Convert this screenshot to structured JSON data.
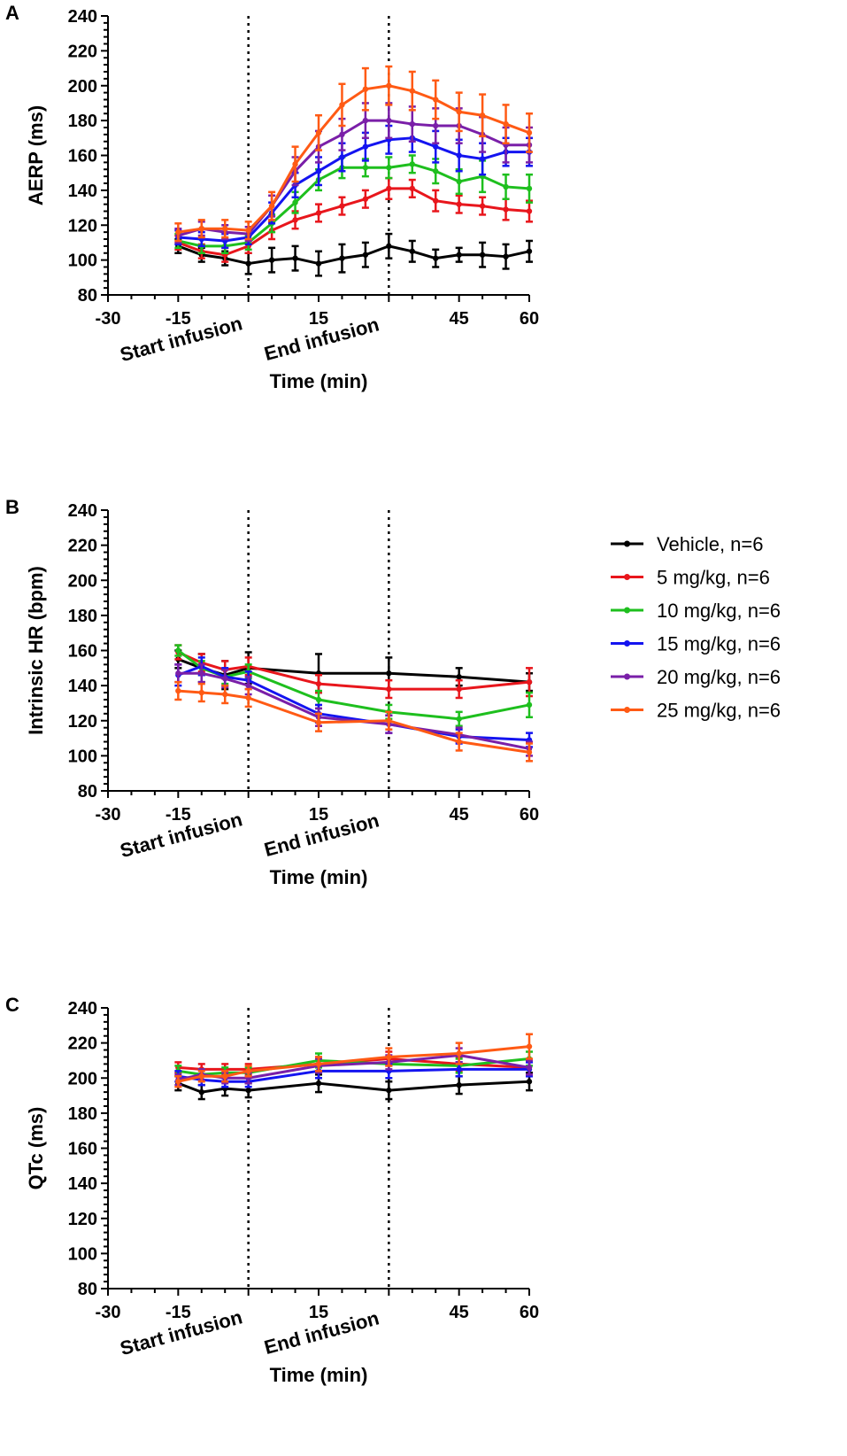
{
  "figure": {
    "legend": [
      {
        "label": "Vehicle, n=6",
        "color": "#000000"
      },
      {
        "label": "5 mg/kg, n=6",
        "color": "#e8161c"
      },
      {
        "label": "10 mg/kg, n=6",
        "color": "#1ebf1e"
      },
      {
        "label": "15 mg/kg, n=6",
        "color": "#1414f0"
      },
      {
        "label": "20 mg/kg, n=6",
        "color": "#7a1fa8"
      },
      {
        "label": "25 mg/kg, n=6",
        "color": "#ff5a14"
      }
    ]
  },
  "chart_data": [
    {
      "panel": "A",
      "type": "line",
      "xlabel": "Time (min)",
      "ylabel": "AERP (ms)",
      "xlim": [
        -30,
        60
      ],
      "ylim": [
        80,
        240
      ],
      "xticks": [
        -30,
        -15,
        15,
        45,
        60
      ],
      "yticks": [
        80,
        100,
        120,
        140,
        160,
        180,
        200,
        220,
        240
      ],
      "ref_lines": [
        {
          "x": 0,
          "label": "Start infusion"
        },
        {
          "x": 30,
          "label": "End infusion"
        }
      ],
      "x": [
        -15,
        -10,
        -5,
        0,
        5,
        10,
        15,
        20,
        25,
        30,
        35,
        40,
        45,
        50,
        55,
        60
      ],
      "series": [
        {
          "name": "Vehicle, n=6",
          "values": [
            108,
            103,
            101,
            98,
            100,
            101,
            98,
            101,
            103,
            108,
            105,
            101,
            103,
            103,
            102,
            105
          ],
          "err": [
            4,
            4,
            4,
            6,
            7,
            7,
            7,
            8,
            7,
            7,
            6,
            5,
            4,
            7,
            7,
            6
          ]
        },
        {
          "name": "5 mg/kg, n=6",
          "values": [
            110,
            105,
            103,
            108,
            117,
            123,
            127,
            131,
            135,
            141,
            141,
            134,
            132,
            131,
            129,
            128
          ],
          "err": [
            4,
            4,
            4,
            4,
            5,
            5,
            5,
            5,
            5,
            6,
            5,
            6,
            5,
            5,
            6,
            6
          ]
        },
        {
          "name": "10 mg/kg, n=6",
          "values": [
            111,
            108,
            108,
            110,
            121,
            133,
            146,
            153,
            153,
            153,
            155,
            151,
            145,
            148,
            142,
            141
          ],
          "err": [
            4,
            4,
            4,
            4,
            5,
            6,
            6,
            6,
            5,
            6,
            5,
            7,
            7,
            9,
            7,
            8
          ]
        },
        {
          "name": "15 mg/kg, n=6",
          "values": [
            113,
            112,
            111,
            113,
            127,
            143,
            151,
            159,
            165,
            169,
            170,
            165,
            160,
            158,
            162,
            162
          ],
          "err": [
            4,
            4,
            4,
            4,
            6,
            7,
            8,
            8,
            8,
            8,
            8,
            9,
            9,
            9,
            8,
            8
          ]
        },
        {
          "name": "20 mg/kg, n=6",
          "values": [
            114,
            118,
            116,
            115,
            131,
            151,
            165,
            172,
            180,
            180,
            178,
            177,
            177,
            172,
            166,
            166
          ],
          "err": [
            4,
            4,
            4,
            4,
            6,
            8,
            9,
            9,
            10,
            10,
            10,
            10,
            10,
            10,
            10,
            10
          ]
        },
        {
          "name": "25 mg/kg, n=6",
          "values": [
            116,
            118,
            118,
            117,
            131,
            155,
            173,
            189,
            198,
            200,
            197,
            192,
            185,
            183,
            178,
            173
          ],
          "err": [
            5,
            5,
            5,
            5,
            8,
            10,
            10,
            12,
            12,
            11,
            11,
            11,
            11,
            12,
            11,
            11
          ]
        }
      ]
    },
    {
      "panel": "B",
      "type": "line",
      "xlabel": "Time (min)",
      "ylabel": "Intrinsic HR (bpm)",
      "xlim": [
        -30,
        60
      ],
      "ylim": [
        80,
        240
      ],
      "xticks": [
        -30,
        -15,
        15,
        45,
        60
      ],
      "yticks": [
        80,
        100,
        120,
        140,
        160,
        180,
        200,
        220,
        240
      ],
      "ref_lines": [
        {
          "x": 0,
          "label": "Start infusion"
        },
        {
          "x": 30,
          "label": "End infusion"
        }
      ],
      "x": [
        -15,
        -10,
        -5,
        0,
        15,
        30,
        45,
        60
      ],
      "series": [
        {
          "name": "Vehicle, n=6",
          "values": [
            155,
            150,
            146,
            150,
            147,
            147,
            145,
            142
          ],
          "err": [
            5,
            8,
            8,
            9,
            11,
            9,
            5,
            5
          ]
        },
        {
          "name": "5 mg/kg, n=6",
          "values": [
            159,
            153,
            149,
            151,
            141,
            138,
            138,
            142
          ],
          "err": [
            4,
            5,
            5,
            5,
            5,
            5,
            5,
            8
          ]
        },
        {
          "name": "10 mg/kg, n=6",
          "values": [
            160,
            150,
            145,
            148,
            132,
            125,
            121,
            129
          ],
          "err": [
            3,
            4,
            4,
            4,
            5,
            4,
            4,
            7
          ]
        },
        {
          "name": "15 mg/kg, n=6",
          "values": [
            146,
            151,
            145,
            143,
            124,
            118,
            111,
            109
          ],
          "err": [
            6,
            5,
            5,
            5,
            5,
            5,
            4,
            4
          ]
        },
        {
          "name": "20 mg/kg, n=6",
          "values": [
            147,
            147,
            144,
            140,
            122,
            118,
            112,
            104
          ],
          "err": [
            5,
            5,
            5,
            5,
            5,
            5,
            4,
            4
          ]
        },
        {
          "name": "25 mg/kg, n=6",
          "values": [
            137,
            136,
            135,
            133,
            119,
            120,
            108,
            102
          ],
          "err": [
            5,
            5,
            5,
            5,
            5,
            5,
            5,
            5
          ]
        }
      ]
    },
    {
      "panel": "C",
      "type": "line",
      "xlabel": "Time (min)",
      "ylabel": "QTc (ms)",
      "xlim": [
        -30,
        60
      ],
      "ylim": [
        80,
        240
      ],
      "xticks": [
        -30,
        -15,
        15,
        45,
        60
      ],
      "yticks": [
        80,
        100,
        120,
        140,
        160,
        180,
        200,
        220,
        240
      ],
      "ref_lines": [
        {
          "x": 0,
          "label": "Start infusion"
        },
        {
          "x": 30,
          "label": "End infusion"
        }
      ],
      "x": [
        -15,
        -10,
        -5,
        0,
        15,
        30,
        45,
        60
      ],
      "series": [
        {
          "name": "Vehicle, n=6",
          "values": [
            197,
            192,
            194,
            193,
            197,
            193,
            196,
            198
          ],
          "err": [
            4,
            4,
            4,
            4,
            5,
            5,
            5,
            5
          ]
        },
        {
          "name": "5 mg/kg, n=6",
          "values": [
            206,
            205,
            205,
            205,
            208,
            211,
            208,
            206
          ],
          "err": [
            3,
            3,
            3,
            3,
            4,
            4,
            4,
            4
          ]
        },
        {
          "name": "10 mg/kg, n=6",
          "values": [
            204,
            202,
            203,
            203,
            210,
            208,
            207,
            211
          ],
          "err": [
            3,
            3,
            3,
            3,
            4,
            4,
            4,
            4
          ]
        },
        {
          "name": "15 mg/kg, n=6",
          "values": [
            201,
            199,
            198,
            198,
            204,
            204,
            205,
            205
          ],
          "err": [
            3,
            3,
            3,
            3,
            4,
            4,
            4,
            4
          ]
        },
        {
          "name": "20 mg/kg, n=6",
          "values": [
            199,
            202,
            200,
            200,
            207,
            209,
            213,
            206
          ],
          "err": [
            3,
            3,
            3,
            3,
            4,
            4,
            4,
            4
          ]
        },
        {
          "name": "25 mg/kg, n=6",
          "values": [
            198,
            201,
            201,
            204,
            208,
            212,
            214,
            218
          ],
          "err": [
            3,
            3,
            3,
            3,
            4,
            5,
            6,
            7
          ]
        }
      ]
    }
  ]
}
